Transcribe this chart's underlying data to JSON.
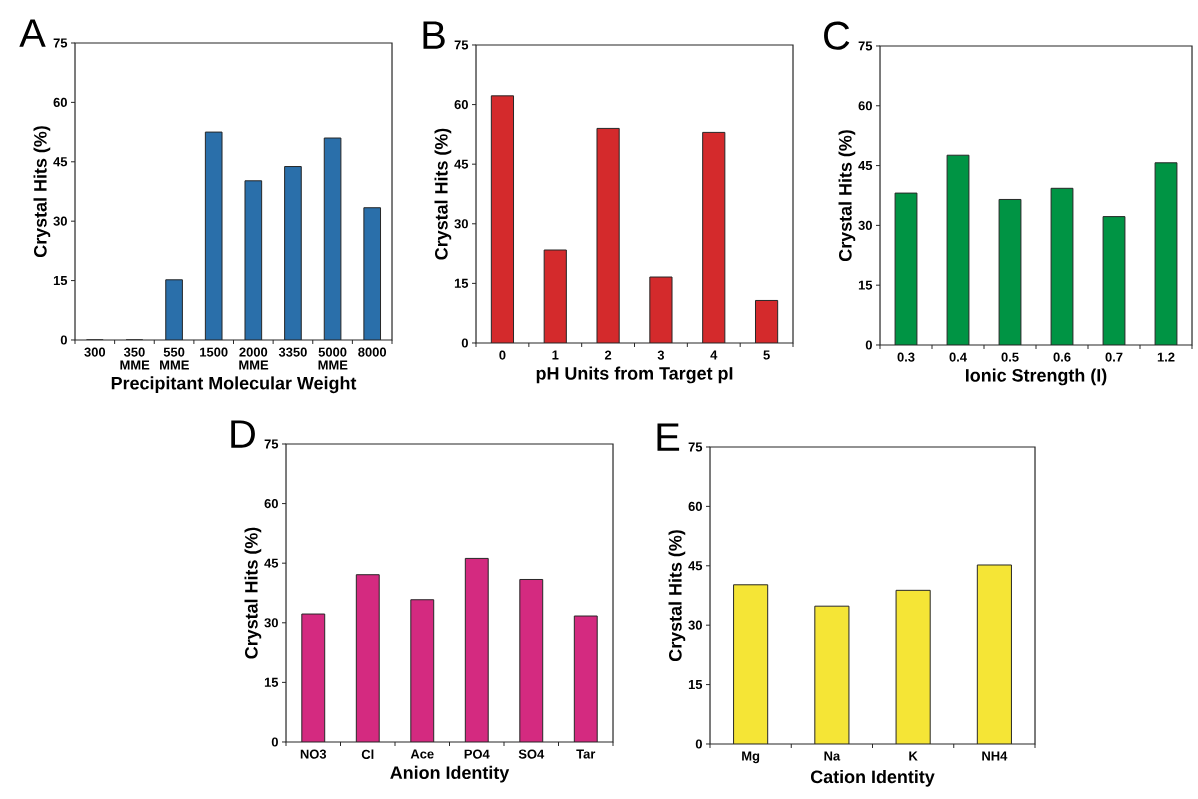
{
  "chart_data": [
    {
      "type": "bar",
      "title": "A",
      "xlabel": "Precipitant Molecular Weight",
      "ylabel": "Crystal Hits (%)",
      "categories": [
        "300",
        "350 MME",
        "550 MME",
        "1500",
        "2000 MME",
        "3350",
        "5000 MME",
        "8000"
      ],
      "values": [
        0,
        0,
        15.2,
        52.5,
        40.2,
        43.8,
        51,
        33.4
      ],
      "color": "#2a6faa",
      "ylim": [
        0,
        75
      ],
      "yticks": [
        0,
        15,
        30,
        45,
        60,
        75
      ]
    },
    {
      "type": "bar",
      "title": "B",
      "xlabel": "pH Units from Target pI",
      "ylabel": "Crystal Hits (%)",
      "categories": [
        "0",
        "1",
        "2",
        "3",
        "4",
        "5"
      ],
      "values": [
        62.2,
        23.4,
        54,
        16.6,
        53,
        10.7
      ],
      "color": "#d42a2c",
      "ylim": [
        0,
        75
      ],
      "yticks": [
        0,
        15,
        30,
        45,
        60,
        75
      ]
    },
    {
      "type": "bar",
      "title": "C",
      "xlabel": "Ionic Strength (I)",
      "ylabel": "Crystal Hits (%)",
      "categories": [
        "0.3",
        "0.4",
        "0.5",
        "0.6",
        "0.7",
        "1.2"
      ],
      "values": [
        38.1,
        47.6,
        36.5,
        39.3,
        32.2,
        45.7
      ],
      "color": "#009444",
      "ylim": [
        0,
        75
      ],
      "yticks": [
        0,
        15,
        30,
        45,
        60,
        75
      ]
    },
    {
      "type": "bar",
      "title": "D",
      "xlabel": "Anion Identity",
      "ylabel": "Crystal Hits (%)",
      "categories": [
        "NO3",
        "Cl",
        "Ace",
        "PO4",
        "SO4",
        "Tar"
      ],
      "values": [
        32.2,
        42.1,
        35.8,
        46.2,
        40.9,
        31.7
      ],
      "color": "#d42a80",
      "ylim": [
        0,
        75
      ],
      "yticks": [
        0,
        15,
        30,
        45,
        60,
        75
      ]
    },
    {
      "type": "bar",
      "title": "E",
      "xlabel": "Cation Identity",
      "ylabel": "Crystal Hits (%)",
      "categories": [
        "Mg",
        "Na",
        "K",
        "NH4"
      ],
      "values": [
        40.2,
        34.8,
        38.8,
        45.2
      ],
      "color": "#f5e536",
      "ylim": [
        0,
        75
      ],
      "yticks": [
        0,
        15,
        30,
        45,
        60,
        75
      ]
    }
  ]
}
